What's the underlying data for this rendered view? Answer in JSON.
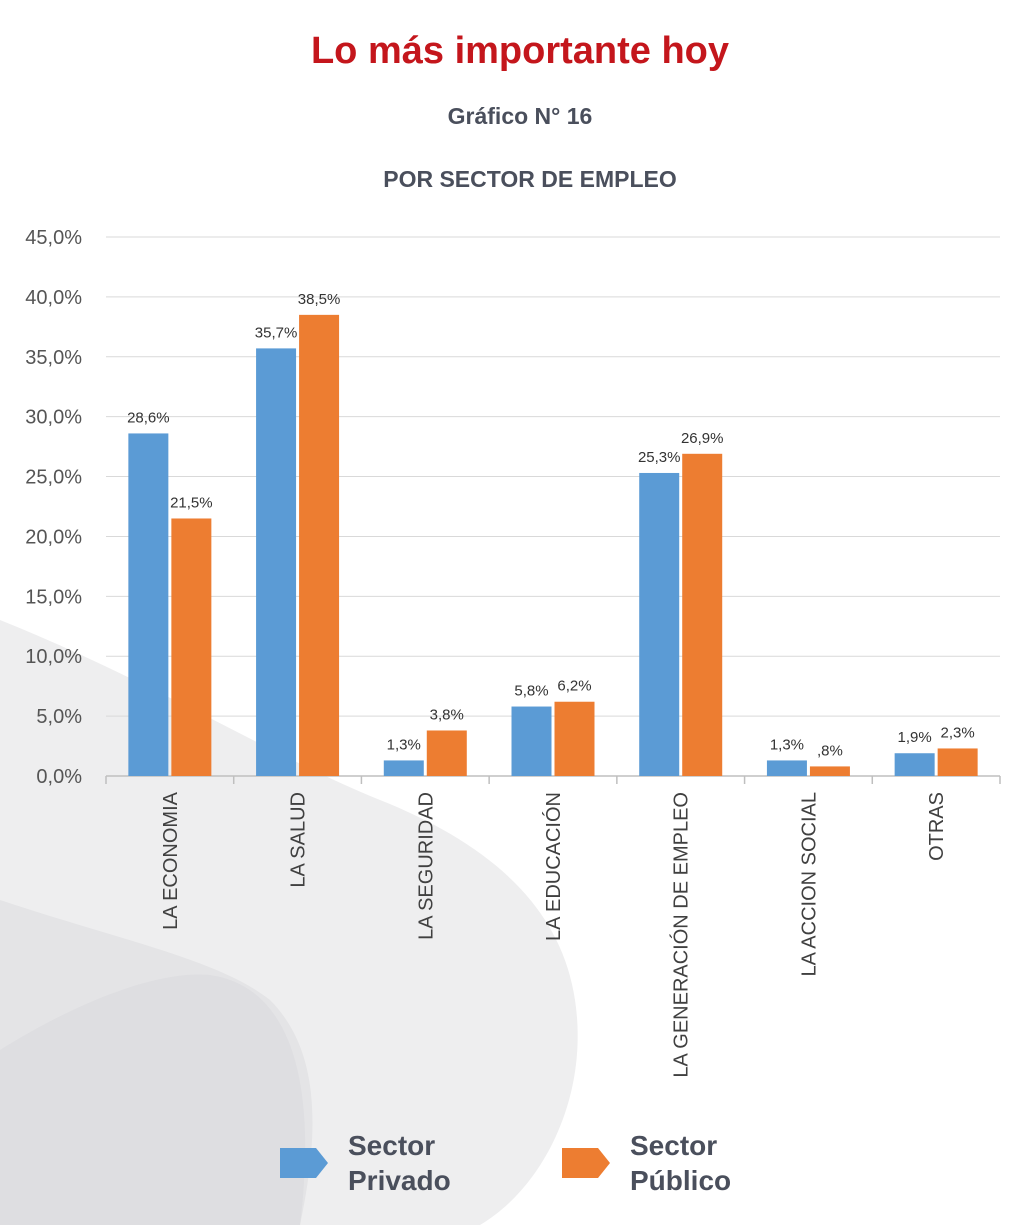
{
  "header": {
    "title": "Lo más importante hoy",
    "subtitle": "Gráfico N° 16",
    "chart_title": "POR SECTOR DE EMPLEO"
  },
  "colors": {
    "title": "#c4161c",
    "series_1": "#5b9bd5",
    "series_2": "#ed7d31",
    "grid": "#d9d9d9",
    "text": "#4a4f5c"
  },
  "chart_data": {
    "type": "bar",
    "title": "POR SECTOR DE EMPLEO",
    "categories": [
      "LA ECONOMIA",
      "LA SALUD",
      "LA SEGURIDAD",
      "LA EDUCACIÓN",
      "LA GENERACIÓN DE EMPLEO",
      "LA ACCION SOCIAL",
      "OTRAS"
    ],
    "series": [
      {
        "name": "Sector Privado",
        "values": [
          28.6,
          35.7,
          1.3,
          5.8,
          25.3,
          1.3,
          1.9
        ],
        "labels": [
          "28,6%",
          "35,7%",
          "1,3%",
          "5,8%",
          "25,3%",
          "1,3%",
          "1,9%"
        ]
      },
      {
        "name": "Sector Público",
        "values": [
          21.5,
          38.5,
          3.8,
          6.2,
          26.9,
          0.8,
          2.3
        ],
        "labels": [
          "21,5%",
          "38,5%",
          "3,8%",
          "6,2%",
          "26,9%",
          ",8%",
          "2,3%"
        ]
      }
    ],
    "ylim": [
      0,
      45
    ],
    "yticks": [
      0,
      5,
      10,
      15,
      20,
      25,
      30,
      35,
      40,
      45
    ],
    "ytick_labels": [
      "0,0%",
      "5,0%",
      "10,0%",
      "15,0%",
      "20,0%",
      "25,0%",
      "30,0%",
      "35,0%",
      "40,0%",
      "45,0%"
    ],
    "grid": true,
    "legend_position": "bottom"
  },
  "legend": {
    "items": [
      {
        "line1": "Sector",
        "line2": "Privado"
      },
      {
        "line1": "Sector",
        "line2": "Público"
      }
    ]
  }
}
